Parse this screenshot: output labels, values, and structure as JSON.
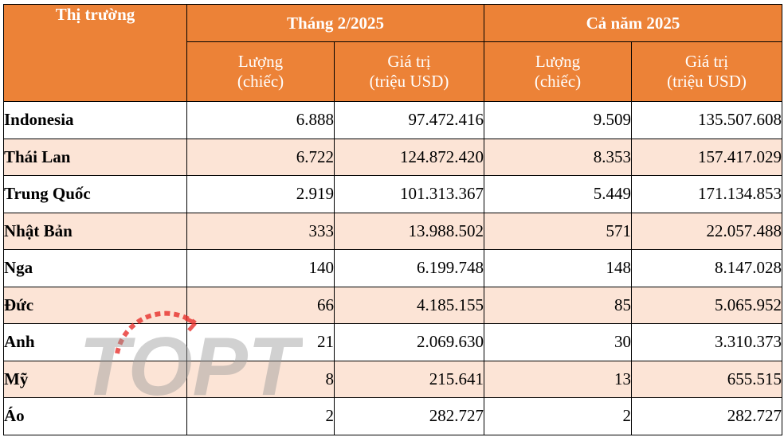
{
  "header": {
    "market_label": "Thị trường",
    "group_month": "Tháng 2/2025",
    "group_year": "Cả năm 2025",
    "qty_label_line1": "Lượng",
    "qty_label_line2": "(chiếc)",
    "val_label_line1": "Giá trị",
    "val_label_line2": "(triệu USD)"
  },
  "rows": [
    {
      "market": "Indonesia",
      "month_qty": "6.888",
      "month_val": "97.472.416",
      "year_qty": "9.509",
      "year_val": "135.507.608"
    },
    {
      "market": "Thái Lan",
      "month_qty": "6.722",
      "month_val": "124.872.420",
      "year_qty": "8.353",
      "year_val": "157.417.029"
    },
    {
      "market": "Trung Quốc",
      "month_qty": "2.919",
      "month_val": "101.313.367",
      "year_qty": "5.449",
      "year_val": "171.134.853"
    },
    {
      "market": "Nhật Bản",
      "month_qty": "333",
      "month_val": "13.988.502",
      "year_qty": "571",
      "year_val": "22.057.488"
    },
    {
      "market": "Nga",
      "month_qty": "140",
      "month_val": "6.199.748",
      "year_qty": "148",
      "year_val": "8.147.028"
    },
    {
      "market": "Đức",
      "month_qty": "66",
      "month_val": "4.185.155",
      "year_qty": "85",
      "year_val": "5.065.952"
    },
    {
      "market": "Anh",
      "month_qty": "21",
      "month_val": "2.069.630",
      "year_qty": "30",
      "year_val": "3.310.373"
    },
    {
      "market": "Mỹ",
      "month_qty": "8",
      "month_val": "215.641",
      "year_qty": "13",
      "year_val": "655.515"
    },
    {
      "market": "Áo",
      "month_qty": "2",
      "month_val": "282.727",
      "year_qty": "2",
      "year_val": "282.727"
    }
  ],
  "watermark": {
    "text": "TOPT",
    "accent_color": "#e8302c",
    "text_color": "#9a9a9a"
  },
  "colors": {
    "header_bg": "#ec8237",
    "alt_row_bg": "#fce4d6",
    "border": "#000000"
  }
}
